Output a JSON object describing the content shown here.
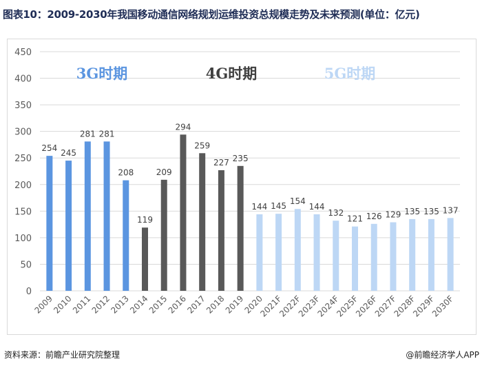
{
  "title": "图表10：2009-2030年我国移动通信网络规划运维投资总规模走势及未来预测(单位：亿元)",
  "footer": {
    "source": "资料来源：前瞻产业研究院整理",
    "brand": "@前瞻经济学人APP"
  },
  "colors": {
    "g3": "#5b95e0",
    "g4": "#595959",
    "g5": "#bdd7f5",
    "grid": "#d9d9d9",
    "axis_text": "#595959",
    "label_text": "#404040"
  },
  "chart_data": {
    "type": "bar",
    "title": "",
    "xlabel": "",
    "ylabel": "",
    "ylim": [
      0,
      450
    ],
    "yticks": [
      "0",
      "50",
      "100",
      "150",
      "200",
      "250",
      "300",
      "350",
      "400",
      "450"
    ],
    "grid": true,
    "categories": [
      "2009",
      "2010",
      "2011",
      "2012",
      "2013",
      "2014",
      "2015",
      "2016",
      "2017",
      "2018",
      "2019",
      "2020",
      "2021F",
      "2022F",
      "2023F",
      "2024F",
      "2025F",
      "2026F",
      "2027F",
      "2028F",
      "2029F",
      "2030F"
    ],
    "values": [
      254,
      245,
      281,
      281,
      208,
      119,
      209,
      294,
      259,
      227,
      235,
      144,
      145,
      154,
      144,
      132,
      121,
      126,
      129,
      135,
      135,
      137
    ],
    "period_of_bar": [
      "3G",
      "3G",
      "3G",
      "3G",
      "3G",
      "4G",
      "4G",
      "4G",
      "4G",
      "4G",
      "4G",
      "5G",
      "5G",
      "5G",
      "5G",
      "5G",
      "5G",
      "5G",
      "5G",
      "5G",
      "5G",
      "5G"
    ],
    "periods": [
      {
        "key": "3G",
        "label": "3G时期"
      },
      {
        "key": "4G",
        "label": "4G时期"
      },
      {
        "key": "5G",
        "label": "5G时期"
      }
    ]
  }
}
